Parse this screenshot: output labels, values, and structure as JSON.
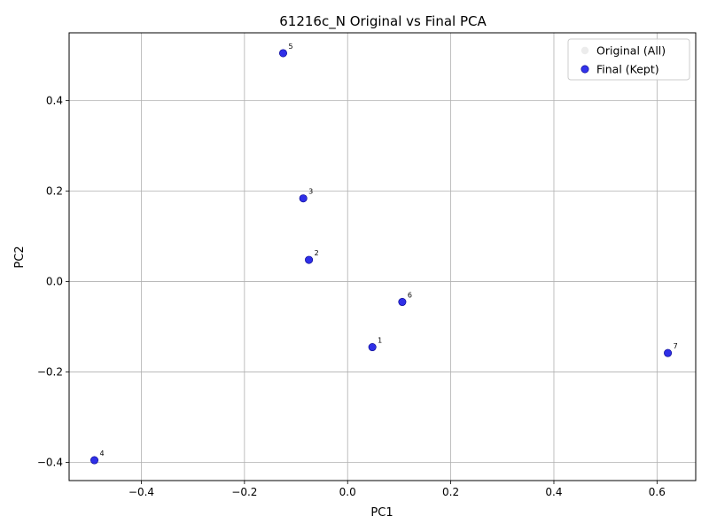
{
  "chart_data": {
    "type": "scatter",
    "title": "61216c_N Original vs Final PCA",
    "xlabel": "PC1",
    "ylabel": "PC2",
    "xlim": [
      -0.54,
      0.675
    ],
    "ylim": [
      -0.44,
      0.55
    ],
    "xticks": [
      -0.4,
      -0.2,
      0.0,
      0.2,
      0.4,
      0.6
    ],
    "xtick_labels": [
      "−0.4",
      "−0.2",
      "0.0",
      "0.2",
      "0.4",
      "0.6"
    ],
    "yticks": [
      -0.4,
      -0.2,
      0.0,
      0.2,
      0.4
    ],
    "ytick_labels": [
      "−0.4",
      "−0.2",
      "0.0",
      "0.2",
      "0.4"
    ],
    "grid": true,
    "legend_position": "top-right",
    "series": [
      {
        "name": "Original (All)",
        "color": "#d9d9d9",
        "points": [
          {
            "label": "1",
            "x": 0.048,
            "y": -0.145
          },
          {
            "label": "2",
            "x": -0.075,
            "y": 0.048
          },
          {
            "label": "3",
            "x": -0.086,
            "y": 0.184
          },
          {
            "label": "4",
            "x": -0.491,
            "y": -0.395
          },
          {
            "label": "5",
            "x": -0.125,
            "y": 0.505
          },
          {
            "label": "6",
            "x": 0.106,
            "y": -0.045
          },
          {
            "label": "7",
            "x": 0.621,
            "y": -0.158
          }
        ]
      },
      {
        "name": "Final (Kept)",
        "color": "#0000e6",
        "points": [
          {
            "label": "1",
            "x": 0.048,
            "y": -0.145
          },
          {
            "label": "2",
            "x": -0.075,
            "y": 0.048
          },
          {
            "label": "3",
            "x": -0.086,
            "y": 0.184
          },
          {
            "label": "4",
            "x": -0.491,
            "y": -0.395
          },
          {
            "label": "5",
            "x": -0.125,
            "y": 0.505
          },
          {
            "label": "6",
            "x": 0.106,
            "y": -0.045
          },
          {
            "label": "7",
            "x": 0.621,
            "y": -0.158
          }
        ]
      }
    ]
  }
}
